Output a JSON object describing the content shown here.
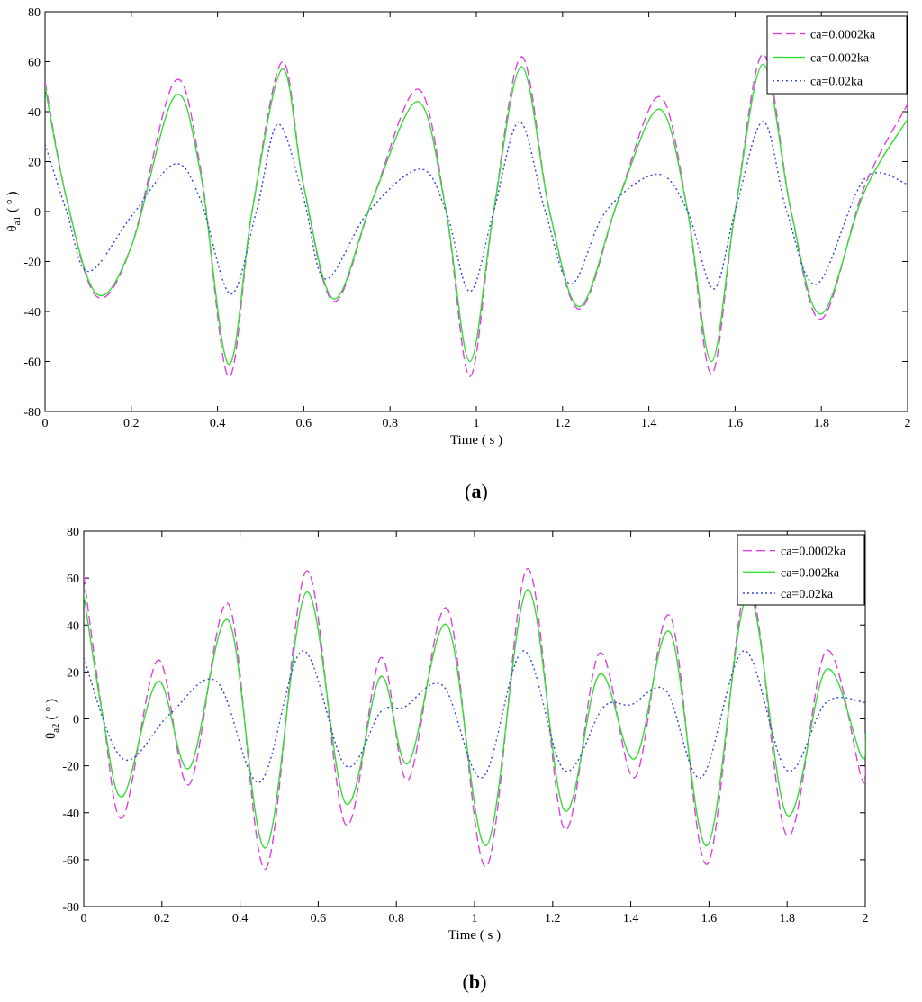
{
  "chart_data": [
    {
      "type": "line",
      "caption": "a",
      "xlabel": "Time ( s )",
      "ylabel_symbol": "θ",
      "ylabel_sub": "a1",
      "ylabel_unit": "( ° )",
      "xlim": [
        0,
        2
      ],
      "ylim": [
        -80,
        80
      ],
      "xticks": [
        "0",
        "0.2",
        "0.4",
        "0.6",
        "0.8",
        "1",
        "1.2",
        "1.4",
        "1.6",
        "1.8",
        "2"
      ],
      "yticks": [
        "-80",
        "-60",
        "-40",
        "-20",
        "0",
        "20",
        "40",
        "60",
        "80"
      ],
      "grid": false,
      "legend_position": "top-right",
      "series": [
        {
          "name": "ca=0.0002ka",
          "color": "#e040e0",
          "dash": "dashed",
          "points": [
            [
              0,
              52
            ],
            [
              0.05,
              5
            ],
            [
              0.12,
              -34
            ],
            [
              0.2,
              -14
            ],
            [
              0.3,
              52
            ],
            [
              0.36,
              18
            ],
            [
              0.425,
              -66
            ],
            [
              0.48,
              0
            ],
            [
              0.55,
              60
            ],
            [
              0.6,
              10
            ],
            [
              0.67,
              -36
            ],
            [
              0.76,
              5
            ],
            [
              0.865,
              49
            ],
            [
              0.93,
              0
            ],
            [
              0.985,
              -66
            ],
            [
              1.04,
              0
            ],
            [
              1.105,
              62
            ],
            [
              1.17,
              0
            ],
            [
              1.24,
              -39
            ],
            [
              1.33,
              5
            ],
            [
              1.425,
              46
            ],
            [
              1.49,
              0
            ],
            [
              1.545,
              -65
            ],
            [
              1.6,
              0
            ],
            [
              1.665,
              63
            ],
            [
              1.73,
              0
            ],
            [
              1.8,
              -43
            ],
            [
              1.9,
              10
            ],
            [
              2.0,
              43
            ]
          ]
        },
        {
          "name": "ca=0.002ka",
          "color": "#33dd33",
          "dash": "solid",
          "points": [
            [
              0,
              50
            ],
            [
              0.05,
              5
            ],
            [
              0.12,
              -33
            ],
            [
              0.2,
              -14
            ],
            [
              0.3,
              46
            ],
            [
              0.36,
              16
            ],
            [
              0.425,
              -61
            ],
            [
              0.48,
              0
            ],
            [
              0.55,
              57
            ],
            [
              0.6,
              10
            ],
            [
              0.67,
              -35
            ],
            [
              0.76,
              5
            ],
            [
              0.865,
              44
            ],
            [
              0.93,
              0
            ],
            [
              0.985,
              -60
            ],
            [
              1.04,
              0
            ],
            [
              1.105,
              58
            ],
            [
              1.17,
              0
            ],
            [
              1.24,
              -38
            ],
            [
              1.33,
              5
            ],
            [
              1.425,
              41
            ],
            [
              1.49,
              0
            ],
            [
              1.545,
              -60
            ],
            [
              1.6,
              0
            ],
            [
              1.665,
              59
            ],
            [
              1.73,
              0
            ],
            [
              1.8,
              -41
            ],
            [
              1.9,
              8
            ],
            [
              2.0,
              37
            ]
          ]
        },
        {
          "name": "ca=0.02ka",
          "color": "#3344dd",
          "dash": "dotted",
          "points": [
            [
              0,
              27
            ],
            [
              0.05,
              0
            ],
            [
              0.1,
              -24
            ],
            [
              0.2,
              -2
            ],
            [
              0.3,
              19
            ],
            [
              0.36,
              5
            ],
            [
              0.43,
              -33
            ],
            [
              0.49,
              0
            ],
            [
              0.54,
              35
            ],
            [
              0.6,
              5
            ],
            [
              0.65,
              -27
            ],
            [
              0.75,
              0
            ],
            [
              0.87,
              17
            ],
            [
              0.93,
              0
            ],
            [
              0.985,
              -32
            ],
            [
              1.04,
              0
            ],
            [
              1.1,
              36
            ],
            [
              1.16,
              0
            ],
            [
              1.22,
              -29
            ],
            [
              1.3,
              0
            ],
            [
              1.42,
              15
            ],
            [
              1.49,
              0
            ],
            [
              1.55,
              -31
            ],
            [
              1.6,
              0
            ],
            [
              1.665,
              36
            ],
            [
              1.72,
              0
            ],
            [
              1.79,
              -29
            ],
            [
              1.9,
              13
            ],
            [
              2.0,
              11
            ]
          ]
        }
      ]
    },
    {
      "type": "line",
      "caption": "b",
      "xlabel": "Time ( s )",
      "ylabel_symbol": "θ",
      "ylabel_sub": "a2",
      "ylabel_unit": "( ° )",
      "xlim": [
        0,
        2
      ],
      "ylim": [
        -80,
        80
      ],
      "xticks": [
        "0",
        "0.2",
        "0.4",
        "0.6",
        "0.8",
        "1",
        "1.2",
        "1.4",
        "1.6",
        "1.8",
        "2"
      ],
      "yticks": [
        "-80",
        "-60",
        "-40",
        "-20",
        "0",
        "20",
        "40",
        "60",
        "80"
      ],
      "grid": false,
      "legend_position": "top-right",
      "series": [
        {
          "name": "ca=0.0002ka",
          "color": "#e040e0",
          "dash": "dashed",
          "points": [
            [
              0,
              61
            ],
            [
              0.05,
              0
            ],
            [
              0.1,
              -42
            ],
            [
              0.19,
              25
            ],
            [
              0.27,
              -28
            ],
            [
              0.37,
              49
            ],
            [
              0.465,
              -64
            ],
            [
              0.57,
              63
            ],
            [
              0.67,
              -45
            ],
            [
              0.76,
              26
            ],
            [
              0.83,
              -26
            ],
            [
              0.93,
              47
            ],
            [
              1.03,
              -63
            ],
            [
              1.135,
              64
            ],
            [
              1.23,
              -47
            ],
            [
              1.32,
              28
            ],
            [
              1.41,
              -25
            ],
            [
              1.5,
              44
            ],
            [
              1.595,
              -62
            ],
            [
              1.7,
              58
            ],
            [
              1.8,
              -50
            ],
            [
              1.9,
              29
            ],
            [
              1.99,
              -25
            ],
            [
              2.0,
              -18
            ]
          ]
        },
        {
          "name": "ca=0.002ka",
          "color": "#33dd33",
          "dash": "solid",
          "points": [
            [
              0,
              53
            ],
            [
              0.05,
              0
            ],
            [
              0.1,
              -33
            ],
            [
              0.19,
              16
            ],
            [
              0.27,
              -21
            ],
            [
              0.37,
              42
            ],
            [
              0.465,
              -55
            ],
            [
              0.57,
              54
            ],
            [
              0.67,
              -36
            ],
            [
              0.76,
              18
            ],
            [
              0.83,
              -19
            ],
            [
              0.93,
              40
            ],
            [
              1.03,
              -54
            ],
            [
              1.135,
              55
            ],
            [
              1.23,
              -39
            ],
            [
              1.32,
              19
            ],
            [
              1.41,
              -17
            ],
            [
              1.5,
              37
            ],
            [
              1.595,
              -54
            ],
            [
              1.7,
              53
            ],
            [
              1.8,
              -41
            ],
            [
              1.9,
              21
            ],
            [
              1.99,
              -16
            ],
            [
              2.0,
              -6
            ]
          ]
        },
        {
          "name": "ca=0.02ka",
          "color": "#3344dd",
          "dash": "dotted",
          "points": [
            [
              0,
              26
            ],
            [
              0.1,
              -17
            ],
            [
              0.22,
              2
            ],
            [
              0.34,
              16
            ],
            [
              0.45,
              -27
            ],
            [
              0.56,
              29
            ],
            [
              0.67,
              -20
            ],
            [
              0.76,
              3
            ],
            [
              0.82,
              5
            ],
            [
              0.92,
              14
            ],
            [
              1.02,
              -25
            ],
            [
              1.125,
              29
            ],
            [
              1.23,
              -22
            ],
            [
              1.33,
              5
            ],
            [
              1.4,
              6
            ],
            [
              1.49,
              12
            ],
            [
              1.58,
              -25
            ],
            [
              1.69,
              29
            ],
            [
              1.8,
              -22
            ],
            [
              1.9,
              7
            ],
            [
              2.0,
              7
            ]
          ]
        }
      ]
    }
  ]
}
